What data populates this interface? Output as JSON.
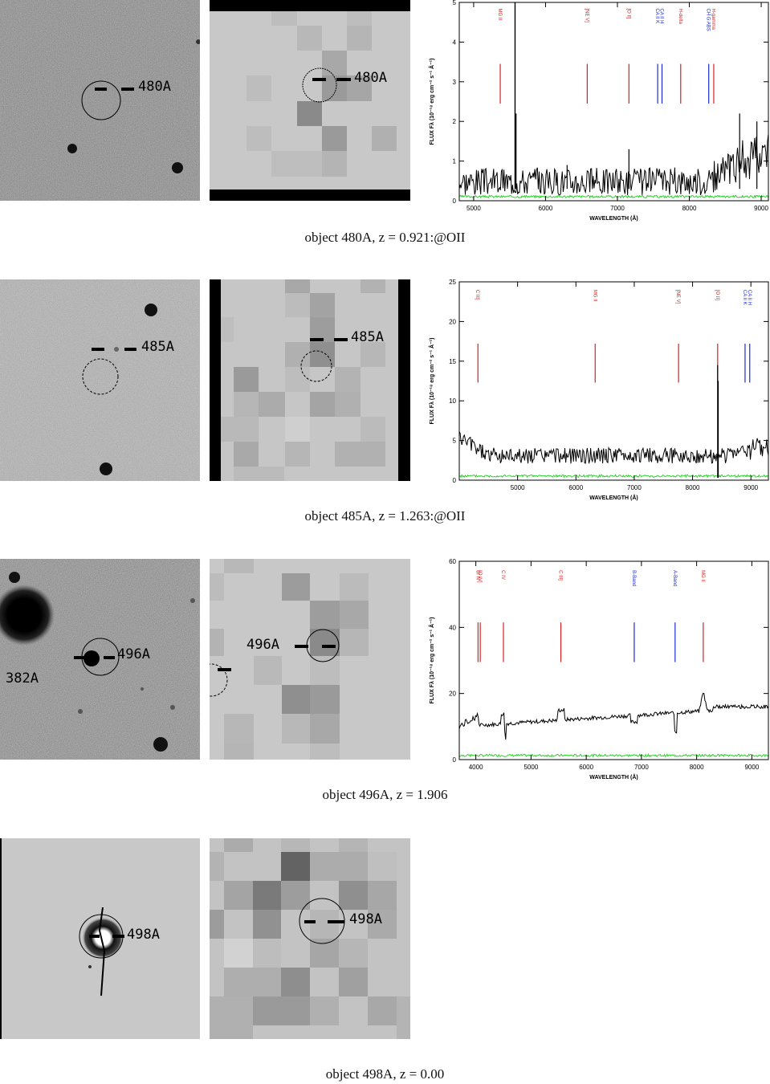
{
  "colors": {
    "line_red": "#d42020",
    "line_blue": "#1c2ad8",
    "noise_green": "#2bd22b",
    "bg_gray": "#c8c8c8"
  },
  "rows": [
    {
      "id": "480A",
      "caption": "object 480A, z = 0.921:@OII",
      "image_label": "480A",
      "thumb_label": "480A",
      "spectrum": {
        "axis_label_x": "WAVELENGTH (Å)",
        "axis_label_y": "FLUX Fλ (10⁻¹⁸ erg cm⁻² s⁻¹ Å⁻¹)",
        "xlim": [
          4800,
          9100
        ],
        "ylim": [
          0,
          5
        ],
        "xticks": [
          5000,
          6000,
          7000,
          8000,
          9000
        ],
        "yticks": [
          0,
          1,
          2,
          3,
          4,
          5
        ],
        "lines": [
          {
            "label": "MG II",
            "x": 5370,
            "color": "red"
          },
          {
            "label": "[NE V]",
            "x": 6580,
            "color": "red"
          },
          {
            "label": "[O II]",
            "x": 7160,
            "color": "red"
          },
          {
            "label": "CA II K",
            "x": 7560,
            "color": "blue"
          },
          {
            "label": "CA II H",
            "x": 7620,
            "color": "blue"
          },
          {
            "label": "H-delta",
            "x": 7880,
            "color": "red"
          },
          {
            "label": "CH G ABS",
            "x": 8270,
            "color": "blue"
          },
          {
            "label": "H-gamma",
            "x": 8340,
            "color": "red"
          }
        ],
        "line_top": 3.45,
        "line_bottom": 2.45,
        "label_y": 4.95,
        "spikes": [
          [
            5577,
            5.0
          ],
          [
            5575,
            5.0
          ],
          [
            5590,
            2.2
          ],
          [
            6300,
            0.9
          ],
          [
            7160,
            1.3
          ],
          [
            8940,
            2.0
          ],
          [
            8700,
            2.2
          ]
        ],
        "baseline": 0.35,
        "noise": 0.35,
        "seed": 3,
        "rise_from": 8200,
        "rise": 0.8
      }
    },
    {
      "id": "485A",
      "caption": "object 485A, z = 1.263:@OII",
      "image_label": "485A",
      "thumb_label": "485A",
      "spectrum": {
        "axis_label_x": "WAVELENGTH (Å)",
        "axis_label_y": "FLUX Fλ (10⁻¹⁸ erg cm⁻² s⁻¹ Å⁻¹)",
        "xlim": [
          4000,
          9300
        ],
        "ylim": [
          0,
          25
        ],
        "xticks": [
          5000,
          6000,
          7000,
          8000,
          9000
        ],
        "yticks": [
          0,
          5,
          10,
          15,
          20,
          25
        ],
        "lines": [
          {
            "label": "C III]",
            "x": 4320,
            "color": "red"
          },
          {
            "label": "MG II",
            "x": 6330,
            "color": "red"
          },
          {
            "label": "[NE V]",
            "x": 7760,
            "color": "red"
          },
          {
            "label": "[O II]",
            "x": 8430,
            "color": "red"
          },
          {
            "label": "CA II K",
            "x": 8900,
            "color": "blue"
          },
          {
            "label": "CA II H",
            "x": 8980,
            "color": "blue"
          }
        ],
        "line_top": 17.2,
        "line_bottom": 12.3,
        "label_y": 24.5,
        "spikes": [
          [
            8430,
            14.5
          ],
          [
            8440,
            12.5
          ]
        ],
        "baseline": 2.7,
        "noise": 1.0,
        "seed": 5,
        "rise_from": 8600,
        "rise": 1.5,
        "start_high": 4.5
      }
    },
    {
      "id": "496A",
      "caption": "object 496A, z = 1.906",
      "image_label": "496A",
      "thumb_label": "496A",
      "extra_label": "382A",
      "spectrum": {
        "axis_label_x": "WAVELENGTH (Å)",
        "axis_label_y": "FLUX Fλ (10⁻¹⁸ erg cm⁻² s⁻¹ Å⁻¹)",
        "xlim": [
          3700,
          9300
        ],
        "ylim": [
          0,
          60
        ],
        "xticks": [
          4000,
          5000,
          6000,
          7000,
          8000,
          9000
        ],
        "yticks": [
          0,
          20,
          40,
          60
        ],
        "lines": [
          {
            "label": "SI IV",
            "x": 4040,
            "color": "red"
          },
          {
            "label": "[O IV]",
            "x": 4080,
            "color": "red"
          },
          {
            "label": "C IV",
            "x": 4500,
            "color": "red"
          },
          {
            "label": "C III]",
            "x": 5540,
            "color": "red"
          },
          {
            "label": "B-Band",
            "x": 6870,
            "color": "blue"
          },
          {
            "label": "A-Band",
            "x": 7610,
            "color": "blue"
          },
          {
            "label": "MG II",
            "x": 8120,
            "color": "red"
          }
        ],
        "line_top": 41.5,
        "line_bottom": 29.5,
        "label_y": 58.5,
        "spikes": [],
        "baseline": 0,
        "noise": 0.6,
        "seed": 7,
        "smooth": true
      }
    },
    {
      "id": "498A",
      "caption": "object 498A, z = 0.00",
      "image_label": "498A",
      "thumb_label": "498A"
    }
  ]
}
